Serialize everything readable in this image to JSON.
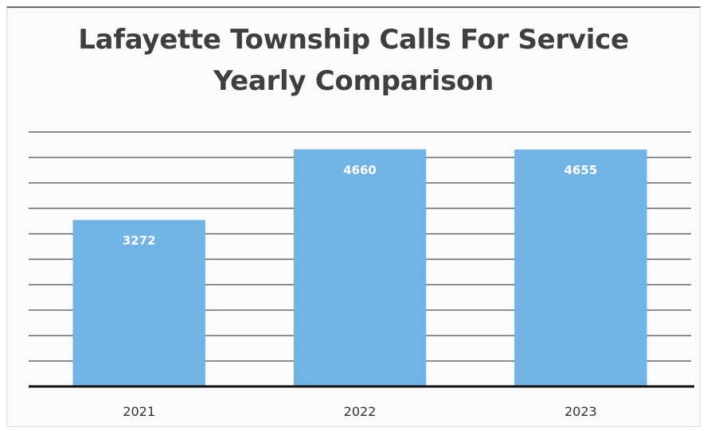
{
  "chart_data": {
    "type": "bar",
    "title": "Lafayette Township Calls For Service",
    "subtitle": "Yearly  Comparison",
    "categories": [
      "2021",
      "2022",
      "2023"
    ],
    "values": [
      3272,
      4660,
      4655
    ],
    "data_labels": [
      "3272",
      "4660",
      "4655"
    ],
    "ylim": [
      0,
      5000
    ],
    "grid": true,
    "legend": "none",
    "colors": {
      "bar": "#72b3e6",
      "grid": "#2b2b2b",
      "axis": "#111111"
    }
  }
}
